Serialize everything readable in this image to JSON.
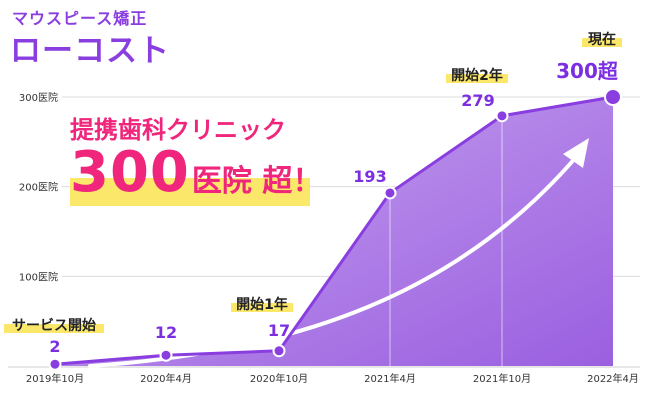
{
  "brand": {
    "subtitle": "マウスピース矯正",
    "name": "ローコスト"
  },
  "headline": {
    "line1": "提携歯科クリニック",
    "number": "300",
    "suffix": "医院 超！"
  },
  "colors": {
    "brand_purple": "#8a3ee0",
    "area_purple": "#9b5fe0",
    "headline_pink": "#f0257c",
    "highlight_yellow": "#fbe86a",
    "label_purple": "#7b2fe0"
  },
  "chart_data": {
    "type": "area",
    "x": [
      "2019年10月",
      "2020年4月",
      "2020年10月",
      "2021年4月",
      "2021年10月",
      "2022年4月"
    ],
    "values": [
      2,
      12,
      17,
      193,
      279,
      300
    ],
    "value_labels": [
      "2",
      "12",
      "17",
      "193",
      "279",
      "300超"
    ],
    "y_ticks": [
      {
        "value": 100,
        "label": "100医院"
      },
      {
        "value": 200,
        "label": "200医院"
      },
      {
        "value": 300,
        "label": "300医院"
      }
    ],
    "ylim": [
      0,
      300
    ],
    "grid": true,
    "annotations": [
      {
        "index": 0,
        "text": "サービス開始"
      },
      {
        "index": 2,
        "text": "開始1年"
      },
      {
        "index": 4,
        "text": "開始2年"
      },
      {
        "index": 5,
        "text": "現在"
      }
    ],
    "trend_arrow": true
  }
}
